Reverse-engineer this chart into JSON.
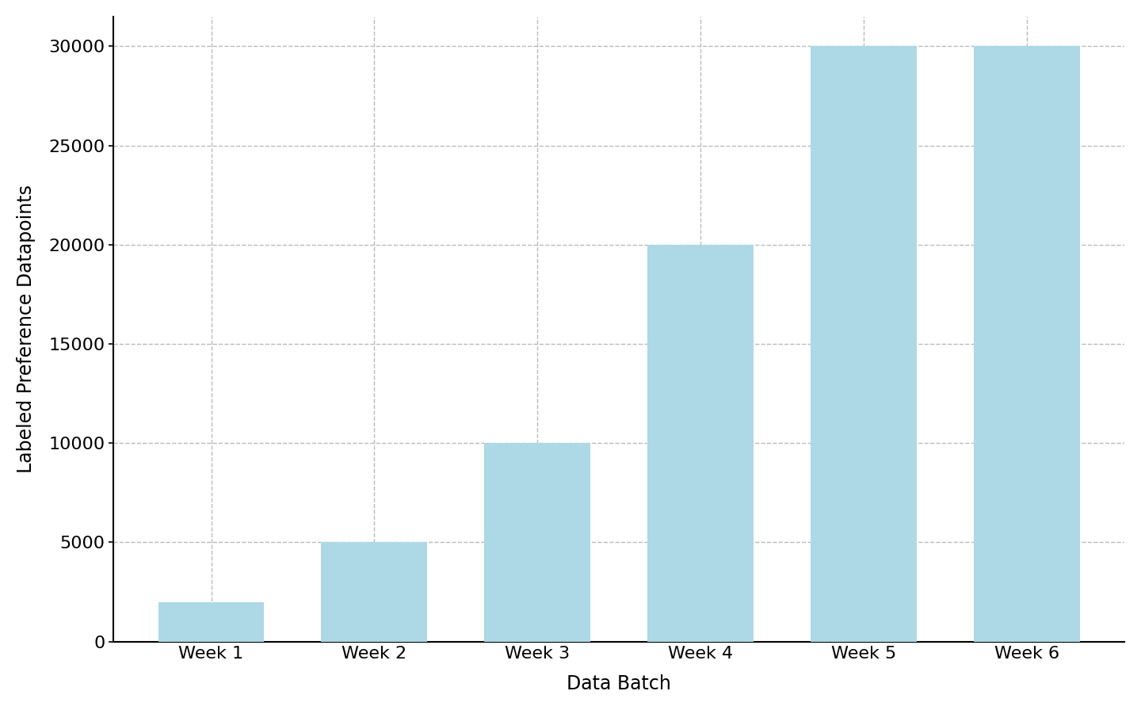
{
  "categories": [
    "Week 1",
    "Week 2",
    "Week 3",
    "Week 4",
    "Week 5",
    "Week 6"
  ],
  "values": [
    2000,
    5000,
    10000,
    20000,
    30000,
    30000
  ],
  "bar_color": "#ADD8E6",
  "bar_edgecolor": "none",
  "title": "",
  "xlabel": "Data Batch",
  "ylabel": "Labeled Preference Datapoints",
  "ylim": [
    0,
    31500
  ],
  "yticks": [
    0,
    5000,
    10000,
    15000,
    20000,
    25000,
    30000
  ],
  "grid_color": "#bbbbbb",
  "grid_linestyle": "--",
  "grid_linewidth": 1.0,
  "grid_alpha": 1.0,
  "xlabel_fontsize": 17,
  "ylabel_fontsize": 17,
  "tick_fontsize": 16,
  "background_color": "#ffffff",
  "spine_color": "#000000",
  "bar_width": 0.65
}
